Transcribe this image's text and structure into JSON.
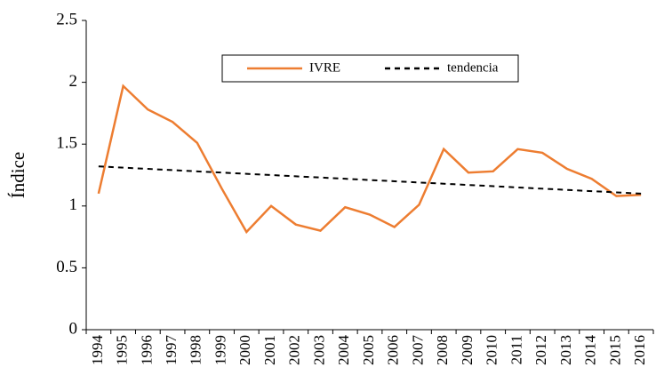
{
  "chart_data": {
    "type": "line",
    "y_label": "Índice",
    "categories": [
      "1994",
      "1995",
      "1996",
      "1997",
      "1998",
      "1999",
      "2000",
      "2001",
      "2002",
      "2003",
      "2004",
      "2005",
      "2006",
      "2007",
      "2008",
      "2009",
      "2010",
      "2011",
      "2012",
      "2013",
      "2014",
      "2015",
      "2016"
    ],
    "series": [
      {
        "name": "IVRE",
        "color": "#ED7D31",
        "dashed": false,
        "values": [
          1.1,
          1.97,
          1.78,
          1.68,
          1.51,
          1.14,
          0.79,
          1.0,
          0.85,
          0.8,
          0.99,
          0.93,
          0.83,
          1.01,
          1.46,
          1.27,
          1.28,
          1.46,
          1.43,
          1.3,
          1.22,
          1.08,
          1.09
        ]
      },
      {
        "name": "tendencia",
        "color": "#000000",
        "dashed": true,
        "values": [
          1.32,
          1.31,
          1.3,
          1.29,
          1.28,
          1.27,
          1.26,
          1.25,
          1.24,
          1.23,
          1.22,
          1.21,
          1.2,
          1.19,
          1.18,
          1.17,
          1.16,
          1.15,
          1.14,
          1.13,
          1.12,
          1.11,
          1.1
        ]
      }
    ],
    "ylim": [
      0,
      2.5
    ],
    "yticks": [
      0,
      0.5,
      1,
      1.5,
      2,
      2.5
    ],
    "grid": false,
    "legend": "top"
  }
}
